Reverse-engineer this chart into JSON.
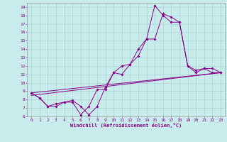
{
  "xlabel": "Windchill (Refroidissement éolien,°C)",
  "bg_color": "#c8ecec",
  "grid_color": "#aad4d4",
  "line_color": "#880088",
  "xlim": [
    -0.5,
    23.5
  ],
  "ylim": [
    6,
    19.5
  ],
  "xticks": [
    0,
    1,
    2,
    3,
    4,
    5,
    6,
    7,
    8,
    9,
    10,
    11,
    12,
    13,
    14,
    15,
    16,
    17,
    18,
    19,
    20,
    21,
    22,
    23
  ],
  "yticks": [
    6,
    7,
    8,
    9,
    10,
    11,
    12,
    13,
    14,
    15,
    16,
    17,
    18,
    19
  ],
  "series1_x": [
    0,
    1,
    2,
    3,
    4,
    5,
    6,
    7,
    8,
    9,
    10,
    11,
    12,
    13,
    14,
    15,
    16,
    17,
    18,
    19,
    20,
    21,
    22,
    23
  ],
  "series1_y": [
    8.8,
    8.2,
    7.2,
    7.2,
    7.7,
    7.7,
    6.2,
    7.2,
    9.2,
    9.2,
    11.2,
    12.0,
    12.2,
    13.2,
    15.2,
    19.2,
    18.0,
    17.2,
    17.2,
    12.0,
    11.2,
    11.7,
    11.2,
    11.2
  ],
  "series2_x": [
    0,
    1,
    2,
    3,
    4,
    5,
    6,
    7,
    8,
    9,
    10,
    11,
    12,
    13,
    14,
    15,
    16,
    17,
    18,
    19,
    20,
    21,
    22,
    23
  ],
  "series2_y": [
    8.8,
    8.2,
    7.2,
    7.5,
    7.7,
    7.9,
    7.2,
    6.2,
    7.2,
    9.5,
    11.2,
    11.0,
    12.2,
    14.0,
    15.2,
    15.2,
    18.2,
    17.8,
    17.2,
    12.0,
    11.5,
    11.7,
    11.7,
    11.2
  ],
  "series3_x": [
    0,
    23
  ],
  "series3_y": [
    8.5,
    11.2
  ],
  "series4_x": [
    0,
    23
  ],
  "series4_y": [
    8.8,
    11.2
  ]
}
